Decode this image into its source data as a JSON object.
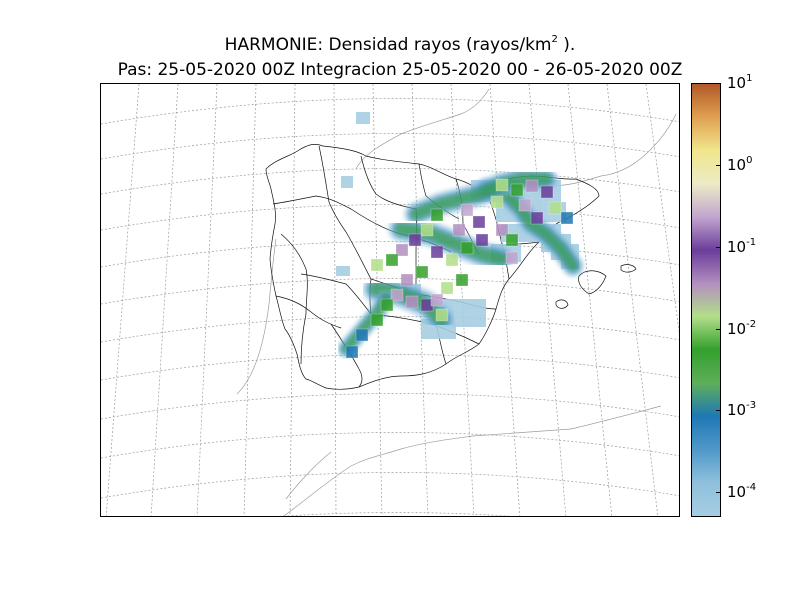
{
  "title": {
    "line1_prefix": "HARMONIE: Densidad rayos  (rayos/km",
    "line1_exp": "2",
    "line1_suffix": " ).",
    "line2": "Pas: 25-05-2020 00Z Integracion 25-05-2020 00 - 26-05-2020 00Z"
  },
  "colorbar": {
    "scale": "log",
    "range": [
      5e-05,
      10
    ],
    "ticks": [
      {
        "base": "10",
        "exp": "1"
      },
      {
        "base": "10",
        "exp": "0"
      },
      {
        "base": "10",
        "exp": "-1"
      },
      {
        "base": "10",
        "exp": "-2"
      },
      {
        "base": "10",
        "exp": "-3"
      },
      {
        "base": "10",
        "exp": "-4"
      }
    ],
    "colors": [
      "#a6cde2",
      "#8fc0dc",
      "#4f98c9",
      "#1f78b4",
      "#5fae5a",
      "#33a02c",
      "#b2df8a",
      "#b38fc0",
      "#6a3d9a",
      "#c2a5cf",
      "#ecebc6",
      "#f0e68c",
      "#e0a050",
      "#b15928"
    ]
  },
  "map": {
    "region": "Península Ibérica",
    "projection": "lambert",
    "graticule": "dashed"
  }
}
